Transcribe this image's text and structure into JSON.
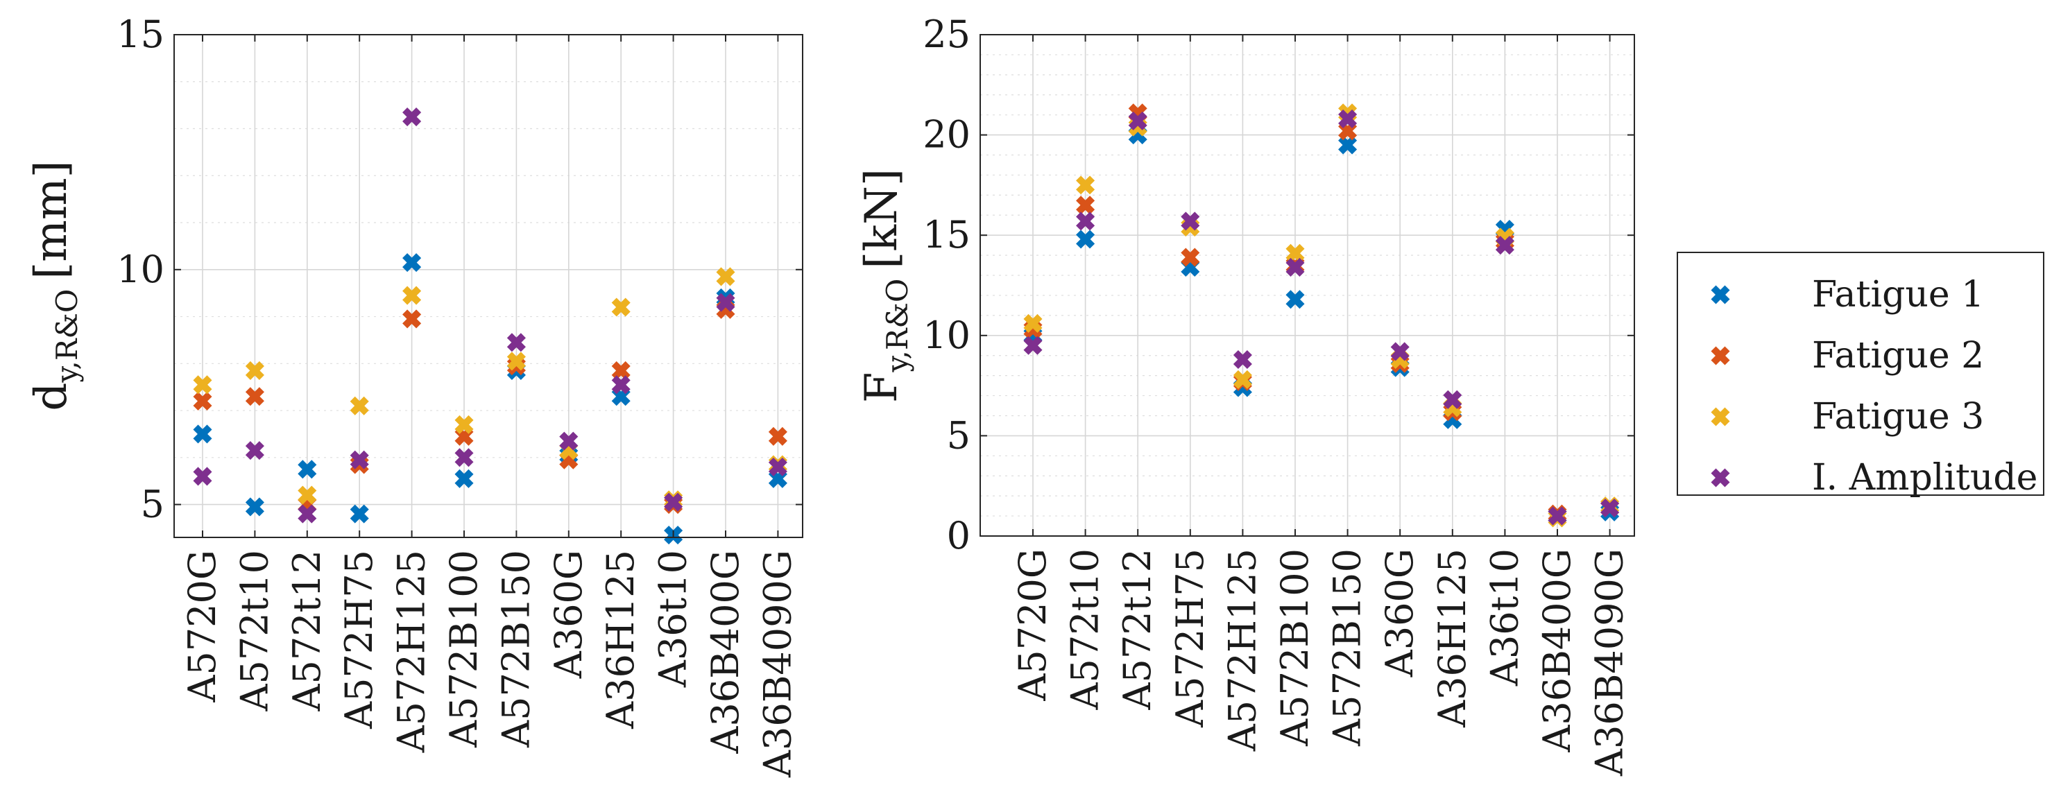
{
  "chart_data": [
    {
      "type": "scatter",
      "marker": "x",
      "ylabel": "d",
      "ylabel_sub": "y,R&O",
      "ylabel_unit": "[mm]",
      "ylim": [
        4.3,
        15
      ],
      "yticks": [
        5,
        10,
        15
      ],
      "grid": true,
      "categories": [
        "A5720G",
        "A572t10",
        "A572t12",
        "A572H75",
        "A572H125",
        "A572B100",
        "A572B150",
        "A360G",
        "A36H125",
        "A36t10",
        "A36B400G",
        "A36B4090G"
      ],
      "series": [
        {
          "name": "Fatigue 1",
          "values": [
            6.5,
            4.95,
            5.75,
            4.8,
            10.15,
            5.55,
            7.85,
            6.05,
            7.3,
            4.35,
            9.4,
            5.55
          ]
        },
        {
          "name": "Fatigue 2",
          "values": [
            7.2,
            7.3,
            5.0,
            5.85,
            8.95,
            6.45,
            7.95,
            5.95,
            7.85,
            5.0,
            9.15,
            6.45
          ]
        },
        {
          "name": "Fatigue 3",
          "values": [
            7.55,
            7.85,
            5.2,
            7.1,
            9.45,
            6.7,
            8.05,
            6.15,
            9.2,
            5.1,
            9.85,
            5.85
          ]
        },
        {
          "name": "I. Amplitude",
          "values": [
            5.6,
            6.15,
            4.8,
            5.95,
            13.25,
            6.0,
            8.45,
            6.35,
            7.55,
            5.05,
            9.3,
            5.8
          ]
        }
      ]
    },
    {
      "type": "scatter",
      "marker": "x",
      "ylabel": "F",
      "ylabel_sub": "y,R&O",
      "ylabel_unit": "[kN]",
      "ylim": [
        0,
        25
      ],
      "yticks": [
        0,
        5,
        10,
        15,
        20,
        25
      ],
      "grid": true,
      "categories": [
        "A5720G",
        "A572t10",
        "A572t12",
        "A572H75",
        "A572H125",
        "A572B100",
        "A572B150",
        "A360G",
        "A36H125",
        "A36t10",
        "A36B400G",
        "A36B4090G"
      ],
      "series": [
        {
          "name": "Fatigue 1",
          "values": [
            10.0,
            14.8,
            20.0,
            13.4,
            7.4,
            11.8,
            19.5,
            8.4,
            5.8,
            15.3,
            1.0,
            1.2
          ]
        },
        {
          "name": "Fatigue 2",
          "values": [
            10.3,
            16.5,
            21.1,
            13.9,
            7.7,
            13.5,
            20.2,
            8.6,
            6.2,
            14.7,
            1.1,
            1.4
          ]
        },
        {
          "name": "Fatigue 3",
          "values": [
            10.6,
            17.5,
            20.4,
            15.4,
            7.8,
            14.1,
            21.1,
            8.8,
            6.4,
            14.9,
            0.9,
            1.5
          ]
        },
        {
          "name": "I. Amplitude",
          "values": [
            9.5,
            15.7,
            20.7,
            15.7,
            8.8,
            13.4,
            20.8,
            9.2,
            6.8,
            14.5,
            1.0,
            1.4
          ]
        }
      ]
    }
  ],
  "legend": {
    "placement": "right",
    "entries": [
      "Fatigue 1",
      "Fatigue 2",
      "Fatigue 3",
      "I. Amplitude"
    ]
  },
  "colors": {
    "Fatigue 1": "#0072BD",
    "Fatigue 2": "#D95319",
    "Fatigue 3": "#EDB120",
    "I. Amplitude": "#7E2F8E"
  }
}
